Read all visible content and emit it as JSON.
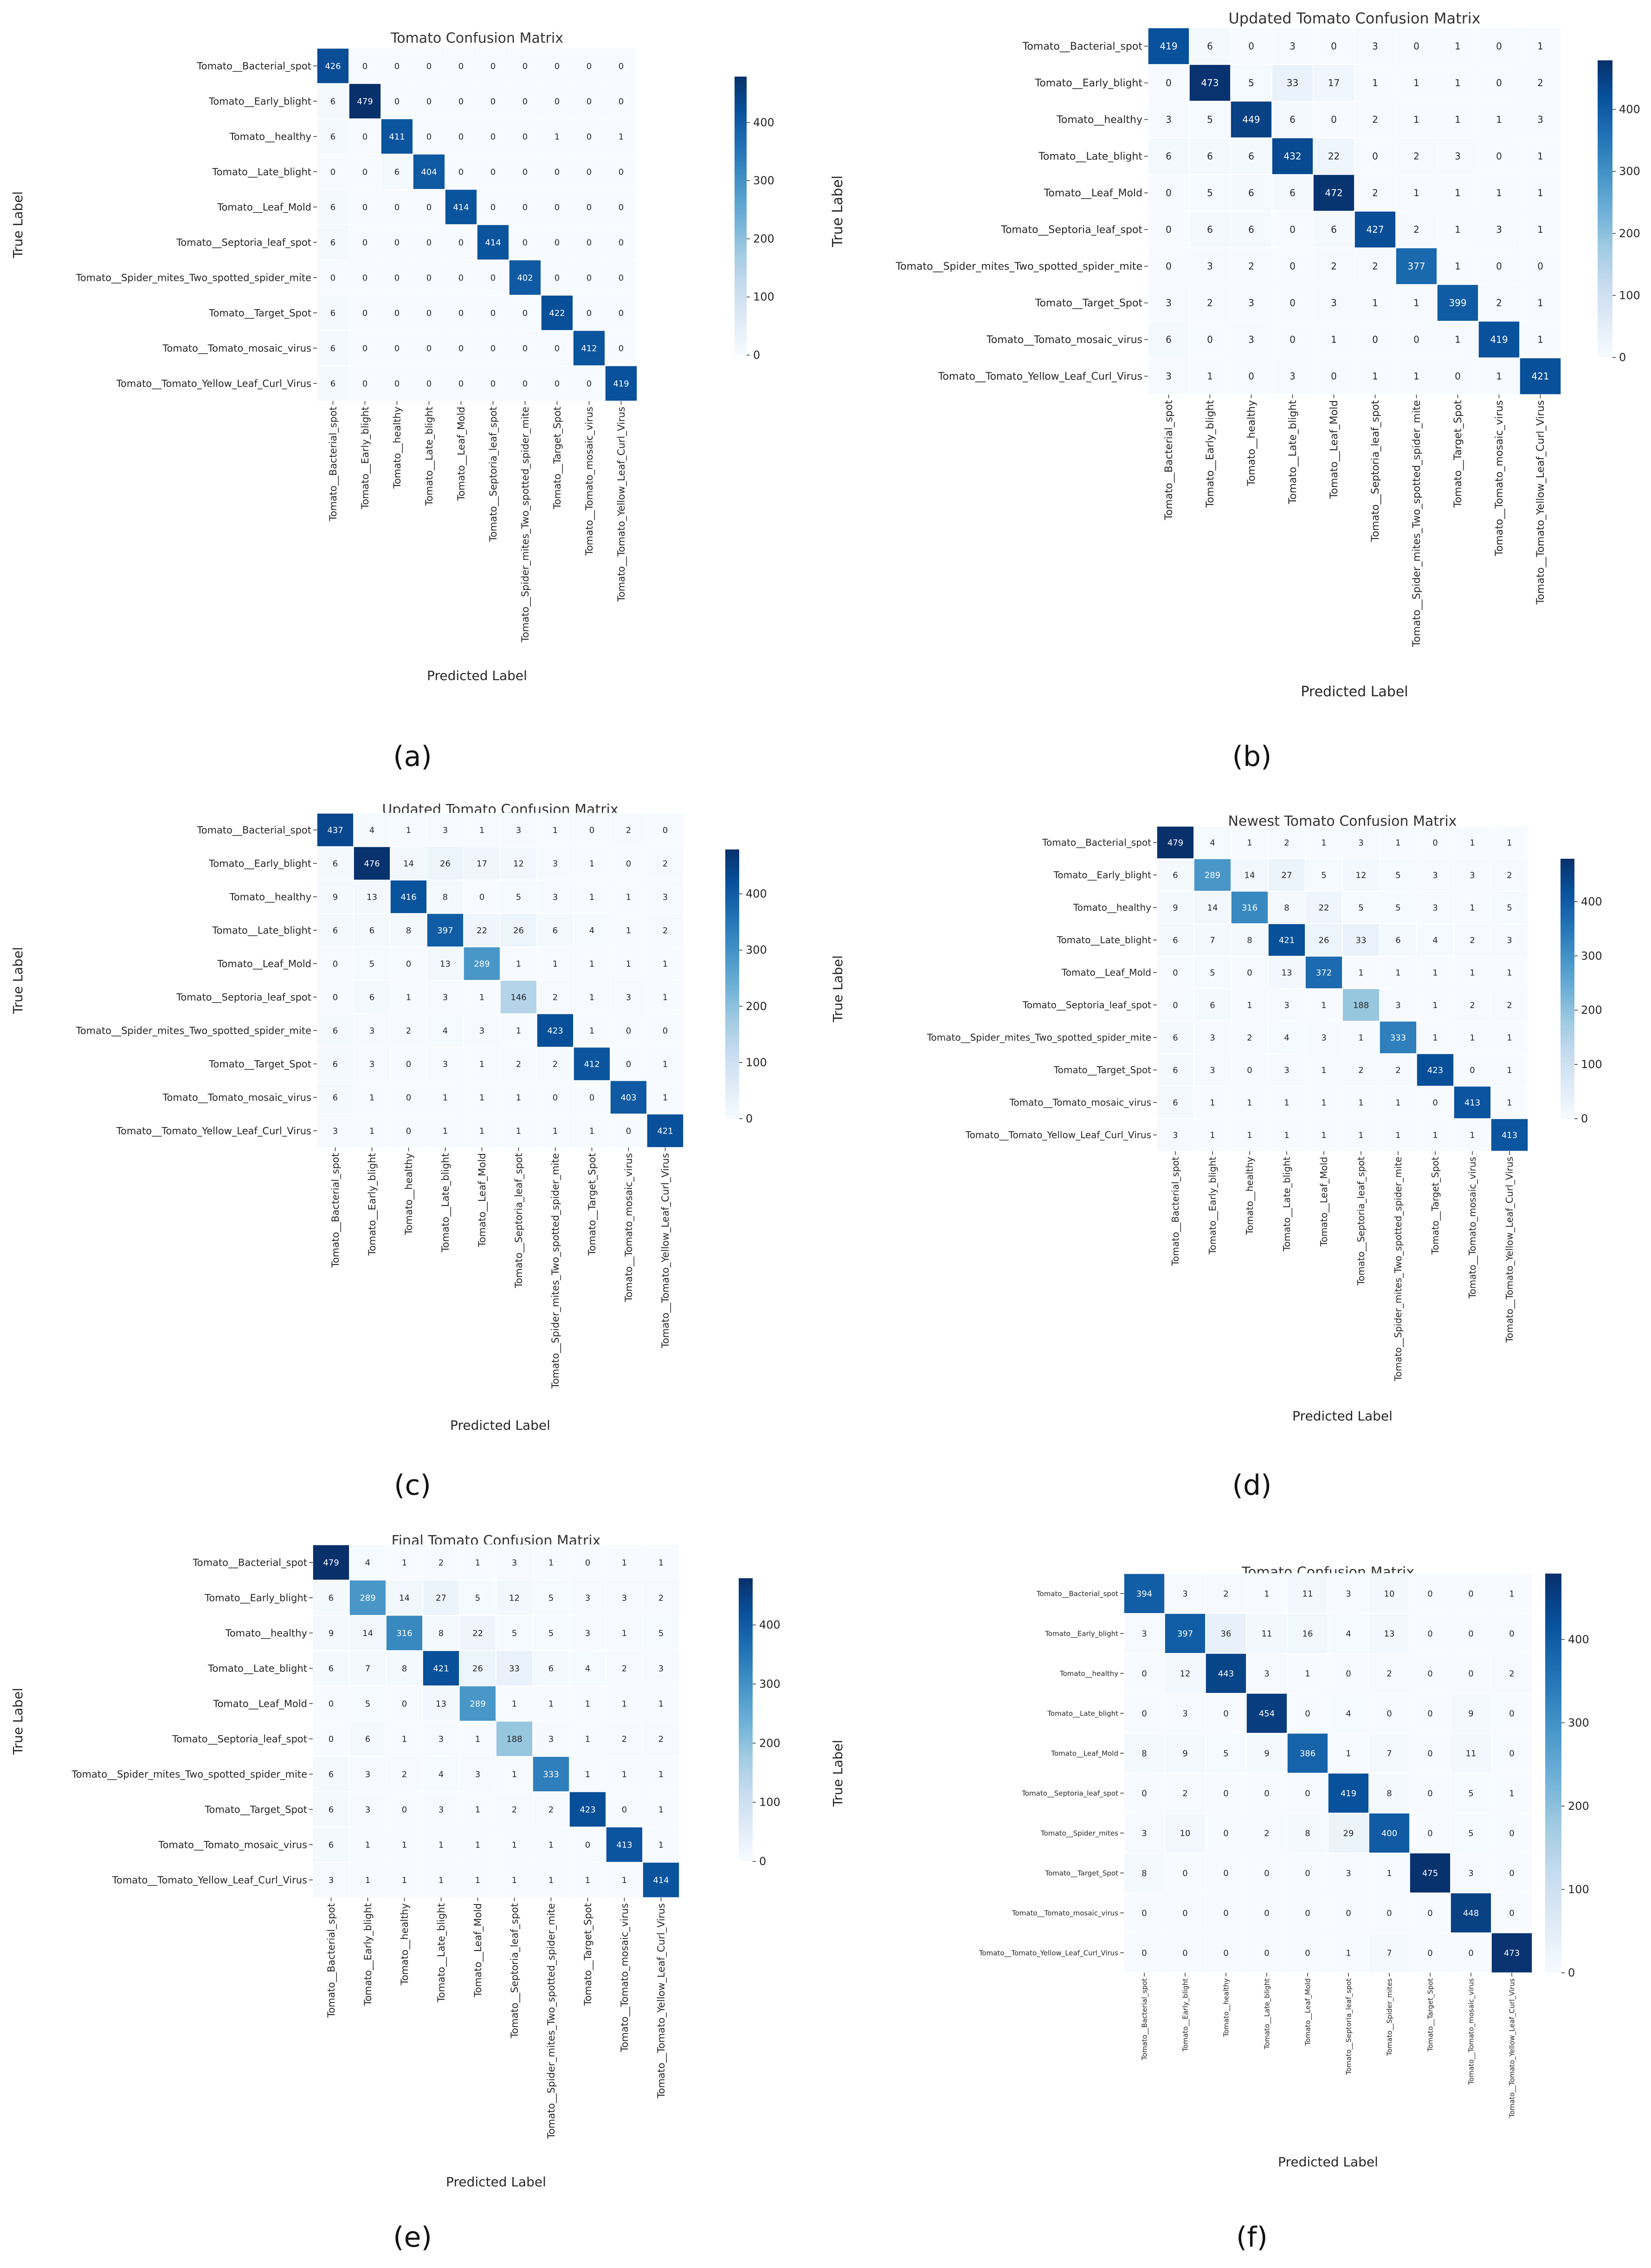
{
  "figure": {
    "colorbar_colors": [
      "#f7fbff",
      "#deebf7",
      "#c6dbef",
      "#9ecae1",
      "#6baed6",
      "#4292c6",
      "#2171b5",
      "#08519c",
      "#08306b"
    ]
  },
  "chart_data": [
    {
      "type": "heatmap",
      "panel_label": "(a)",
      "title": "Tomato Confusion Matrix",
      "xlabel": "Predicted Label",
      "ylabel": "True Label",
      "row_labels": [
        "Tomato__Bacterial_spot",
        "Tomato__Early_blight",
        "Tomato__healthy",
        "Tomato__Late_blight",
        "Tomato__Leaf_Mold",
        "Tomato__Septoria_leaf_spot",
        "Tomato__Spider_mites_Two_spotted_spider_mite",
        "Tomato__Target_Spot",
        "Tomato__Tomato_mosaic_virus",
        "Tomato__Tomato_Yellow_Leaf_Curl_Virus"
      ],
      "col_labels": [
        "Tomato__Bacterial_spot",
        "Tomato__Early_blight",
        "Tomato__healthy",
        "Tomato__Late_blight",
        "Tomato__Leaf_Mold",
        "Tomato__Septoria_leaf_spot",
        "Tomato__Spider_mites_Two_spotted_spider_mite",
        "Tomato__Target_Spot",
        "Tomato__Tomato_mosaic_virus",
        "Tomato__Tomato_Yellow_Leaf_Curl_Virus"
      ],
      "values": [
        [
          426,
          0,
          0,
          0,
          0,
          0,
          0,
          0,
          0,
          0
        ],
        [
          6,
          479,
          0,
          0,
          0,
          0,
          0,
          0,
          0,
          0
        ],
        [
          6,
          0,
          411,
          0,
          0,
          0,
          0,
          1,
          0,
          1
        ],
        [
          0,
          0,
          6,
          404,
          0,
          0,
          0,
          0,
          0,
          0
        ],
        [
          6,
          0,
          0,
          0,
          414,
          0,
          0,
          0,
          0,
          0
        ],
        [
          6,
          0,
          0,
          0,
          0,
          414,
          0,
          0,
          0,
          0
        ],
        [
          0,
          0,
          0,
          0,
          0,
          0,
          402,
          0,
          0,
          0
        ],
        [
          6,
          0,
          0,
          0,
          0,
          0,
          0,
          422,
          0,
          0
        ],
        [
          6,
          0,
          0,
          0,
          0,
          0,
          0,
          0,
          412,
          0
        ],
        [
          6,
          0,
          0,
          0,
          0,
          0,
          0,
          0,
          0,
          419
        ]
      ],
      "vmin": 0,
      "vmax": 479,
      "colorbar_ticks": [
        0,
        100,
        200,
        300,
        400
      ]
    },
    {
      "type": "heatmap",
      "panel_label": "(b)",
      "title": "Updated Tomato Confusion Matrix",
      "xlabel": "Predicted Label",
      "ylabel": "True Label",
      "row_labels": [
        "Tomato__Bacterial_spot",
        "Tomato__Early_blight",
        "Tomato__healthy",
        "Tomato__Late_blight",
        "Tomato__Leaf_Mold",
        "Tomato__Septoria_leaf_spot",
        "Tomato__Spider_mites_Two_spotted_spider_mite",
        "Tomato__Target_Spot",
        "Tomato__Tomato_mosaic_virus",
        "Tomato__Tomato_Yellow_Leaf_Curl_Virus"
      ],
      "col_labels": [
        "Tomato__Bacterial_spot",
        "Tomato__Early_blight",
        "Tomato__healthy",
        "Tomato__Late_blight",
        "Tomato__Leaf_Mold",
        "Tomato__Septoria_leaf_spot",
        "Tomato__Spider_mites_Two_spotted_spider_mite",
        "Tomato__Target_Spot",
        "Tomato__Tomato_mosaic_virus",
        "Tomato__Tomato_Yellow_Leaf_Curl_Virus"
      ],
      "values": [
        [
          419,
          6,
          0,
          3,
          0,
          3,
          0,
          1,
          0,
          1
        ],
        [
          0,
          473,
          5,
          33,
          17,
          1,
          1,
          1,
          0,
          2
        ],
        [
          3,
          5,
          449,
          6,
          0,
          2,
          1,
          1,
          1,
          3
        ],
        [
          6,
          6,
          6,
          432,
          22,
          0,
          2,
          3,
          0,
          1
        ],
        [
          0,
          5,
          6,
          6,
          472,
          2,
          1,
          1,
          1,
          1
        ],
        [
          0,
          6,
          6,
          0,
          6,
          427,
          2,
          1,
          3,
          1
        ],
        [
          0,
          3,
          2,
          0,
          2,
          2,
          377,
          1,
          0,
          0
        ],
        [
          3,
          2,
          3,
          0,
          3,
          1,
          1,
          399,
          2,
          1
        ],
        [
          6,
          0,
          3,
          0,
          1,
          0,
          0,
          1,
          419,
          1
        ],
        [
          3,
          1,
          0,
          3,
          0,
          1,
          1,
          0,
          1,
          421
        ]
      ],
      "vmin": 0,
      "vmax": 479,
      "colorbar_ticks": [
        0,
        100,
        200,
        300,
        400
      ]
    },
    {
      "type": "heatmap",
      "panel_label": "(c)",
      "title": "Updated Tomato Confusion Matrix",
      "xlabel": "Predicted Label",
      "ylabel": "True Label",
      "row_labels": [
        "Tomato__Bacterial_spot",
        "Tomato__Early_blight",
        "Tomato__healthy",
        "Tomato__Late_blight",
        "Tomato__Leaf_Mold",
        "Tomato__Septoria_leaf_spot",
        "Tomato__Spider_mites_Two_spotted_spider_mite",
        "Tomato__Target_Spot",
        "Tomato__Tomato_mosaic_virus",
        "Tomato__Tomato_Yellow_Leaf_Curl_Virus"
      ],
      "col_labels": [
        "Tomato__Bacterial_spot",
        "Tomato__Early_blight",
        "Tomato__healthy",
        "Tomato__Late_blight",
        "Tomato__Leaf_Mold",
        "Tomato__Septoria_leaf_spot",
        "Tomato__Spider_mites_Two_spotted_spider_mite",
        "Tomato__Target_Spot",
        "Tomato__Tomato_mosaic_virus",
        "Tomato__Tomato_Yellow_Leaf_Curl_Virus"
      ],
      "values": [
        [
          437,
          4,
          1,
          3,
          1,
          3,
          1,
          0,
          2,
          0
        ],
        [
          6,
          476,
          14,
          26,
          17,
          12,
          3,
          1,
          0,
          2
        ],
        [
          9,
          13,
          416,
          8,
          0,
          5,
          3,
          1,
          1,
          3
        ],
        [
          6,
          6,
          8,
          397,
          22,
          26,
          6,
          4,
          1,
          2
        ],
        [
          0,
          5,
          0,
          13,
          289,
          1,
          1,
          1,
          1,
          1
        ],
        [
          0,
          6,
          1,
          3,
          1,
          146,
          2,
          1,
          3,
          1
        ],
        [
          6,
          3,
          2,
          4,
          3,
          1,
          423,
          1,
          0,
          0
        ],
        [
          6,
          3,
          0,
          3,
          1,
          2,
          2,
          412,
          0,
          1
        ],
        [
          6,
          1,
          0,
          1,
          1,
          1,
          0,
          0,
          403,
          1
        ],
        [
          3,
          1,
          0,
          1,
          1,
          1,
          1,
          1,
          0,
          421
        ]
      ],
      "vmin": 0,
      "vmax": 479,
      "colorbar_ticks": [
        0,
        100,
        200,
        300,
        400
      ]
    },
    {
      "type": "heatmap",
      "panel_label": "(d)",
      "title": "Newest Tomato Confusion Matrix",
      "xlabel": "Predicted Label",
      "ylabel": "True Label",
      "row_labels": [
        "Tomato__Bacterial_spot",
        "Tomato__Early_blight",
        "Tomato__healthy",
        "Tomato__Late_blight",
        "Tomato__Leaf_Mold",
        "Tomato__Septoria_leaf_spot",
        "Tomato__Spider_mites_Two_spotted_spider_mite",
        "Tomato__Target_Spot",
        "Tomato__Tomato_mosaic_virus",
        "Tomato__Tomato_Yellow_Leaf_Curl_Virus"
      ],
      "col_labels": [
        "Tomato__Bacterial_spot",
        "Tomato__Early_blight",
        "Tomato__healthy",
        "Tomato__Late_blight",
        "Tomato__Leaf_Mold",
        "Tomato__Septoria_leaf_spot",
        "Tomato__Spider_mites_Two_spotted_spider_mite",
        "Tomato__Target_Spot",
        "Tomato__Tomato_mosaic_virus",
        "Tomato__Tomato_Yellow_Leaf_Curl_Virus"
      ],
      "values": [
        [
          479,
          4,
          1,
          2,
          1,
          3,
          1,
          0,
          1,
          1
        ],
        [
          6,
          289,
          14,
          27,
          5,
          12,
          5,
          3,
          3,
          2
        ],
        [
          9,
          14,
          316,
          8,
          22,
          5,
          5,
          3,
          1,
          5
        ],
        [
          6,
          7,
          8,
          421,
          26,
          33,
          6,
          4,
          2,
          3
        ],
        [
          0,
          5,
          0,
          13,
          372,
          1,
          1,
          1,
          1,
          1
        ],
        [
          0,
          6,
          1,
          3,
          1,
          188,
          3,
          1,
          2,
          2
        ],
        [
          6,
          3,
          2,
          4,
          3,
          1,
          333,
          1,
          1,
          1
        ],
        [
          6,
          3,
          0,
          3,
          1,
          2,
          2,
          423,
          0,
          1
        ],
        [
          6,
          1,
          1,
          1,
          1,
          1,
          1,
          0,
          413,
          1
        ],
        [
          3,
          1,
          1,
          1,
          1,
          1,
          1,
          1,
          1,
          413
        ]
      ],
      "vmin": 0,
      "vmax": 479,
      "colorbar_ticks": [
        0,
        100,
        200,
        300,
        400
      ]
    },
    {
      "type": "heatmap",
      "panel_label": "(e)",
      "title": "Final Tomato Confusion Matrix",
      "xlabel": "Predicted Label",
      "ylabel": "True Label",
      "row_labels": [
        "Tomato__Bacterial_spot",
        "Tomato__Early_blight",
        "Tomato__healthy",
        "Tomato__Late_blight",
        "Tomato__Leaf_Mold",
        "Tomato__Septoria_leaf_spot",
        "Tomato__Spider_mites_Two_spotted_spider_mite",
        "Tomato__Target_Spot",
        "Tomato__Tomato_mosaic_virus",
        "Tomato__Tomato_Yellow_Leaf_Curl_Virus"
      ],
      "col_labels": [
        "Tomato__Bacterial_spot",
        "Tomato__Early_blight",
        "Tomato__healthy",
        "Tomato__Late_blight",
        "Tomato__Leaf_Mold",
        "Tomato__Septoria_leaf_spot",
        "Tomato__Spider_mites_Two_spotted_spider_mite",
        "Tomato__Target_Spot",
        "Tomato__Tomato_mosaic_virus",
        "Tomato__Tomato_Yellow_Leaf_Curl_Virus"
      ],
      "values": [
        [
          479,
          4,
          1,
          2,
          1,
          3,
          1,
          0,
          1,
          1
        ],
        [
          6,
          289,
          14,
          27,
          5,
          12,
          5,
          3,
          3,
          2
        ],
        [
          9,
          14,
          316,
          8,
          22,
          5,
          5,
          3,
          1,
          5
        ],
        [
          6,
          7,
          8,
          421,
          26,
          33,
          6,
          4,
          2,
          3
        ],
        [
          0,
          5,
          0,
          13,
          289,
          1,
          1,
          1,
          1,
          1
        ],
        [
          0,
          6,
          1,
          3,
          1,
          188,
          3,
          1,
          2,
          2
        ],
        [
          6,
          3,
          2,
          4,
          3,
          1,
          333,
          1,
          1,
          1
        ],
        [
          6,
          3,
          0,
          3,
          1,
          2,
          2,
          423,
          0,
          1
        ],
        [
          6,
          1,
          1,
          1,
          1,
          1,
          1,
          0,
          413,
          1
        ],
        [
          3,
          1,
          1,
          1,
          1,
          1,
          1,
          1,
          1,
          414
        ]
      ],
      "vmin": 0,
      "vmax": 479,
      "colorbar_ticks": [
        0,
        100,
        200,
        300,
        400
      ]
    },
    {
      "type": "heatmap",
      "panel_label": "(f)",
      "title": "Tomato Confusion Matrix",
      "xlabel": "Predicted Label",
      "ylabel": "True Label",
      "row_labels": [
        "Tomato__Bacterial_spot",
        "Tomato__Early_blight",
        "Tomato__healthy",
        "Tomato__Late_blight",
        "Tomato__Leaf_Mold",
        "Tomato__Septoria_leaf_spot",
        "Tomato__Spider_mites",
        "Tomato__Target_Spot",
        "Tomato__Tomato_mosaic_virus",
        "Tomato__Tomato_Yellow_Leaf_Curl_Virus"
      ],
      "col_labels": [
        "Tomato__Bacterial_spot",
        "Tomato__Early_blight",
        "Tomato__healthy",
        "Tomato__Late_blight",
        "Tomato__Leaf_Mold",
        "Tomato__Septoria_leaf_spot",
        "Tomato__Spider_mites",
        "Tomato__Target_Spot",
        "Tomato__Tomato_mosaic_virus",
        "Tomato__Tomato_Yellow_Leaf_Curl_Virus"
      ],
      "values": [
        [
          394,
          3,
          2,
          1,
          11,
          3,
          10,
          0,
          0,
          1
        ],
        [
          3,
          397,
          36,
          11,
          16,
          4,
          13,
          0,
          0,
          0
        ],
        [
          0,
          12,
          443,
          3,
          1,
          0,
          2,
          0,
          0,
          2
        ],
        [
          0,
          3,
          0,
          454,
          0,
          4,
          0,
          0,
          9,
          0
        ],
        [
          8,
          9,
          5,
          9,
          386,
          1,
          7,
          0,
          11,
          0
        ],
        [
          0,
          2,
          0,
          0,
          0,
          419,
          8,
          0,
          5,
          1
        ],
        [
          3,
          10,
          0,
          2,
          8,
          29,
          400,
          0,
          5,
          0
        ],
        [
          8,
          0,
          0,
          0,
          0,
          3,
          1,
          475,
          3,
          0
        ],
        [
          0,
          0,
          0,
          0,
          0,
          0,
          0,
          0,
          448,
          0
        ],
        [
          0,
          0,
          0,
          0,
          0,
          1,
          7,
          0,
          0,
          473
        ]
      ],
      "vmin": 0,
      "vmax": 479,
      "colorbar_ticks": [
        0,
        100,
        200,
        300,
        400
      ]
    }
  ]
}
